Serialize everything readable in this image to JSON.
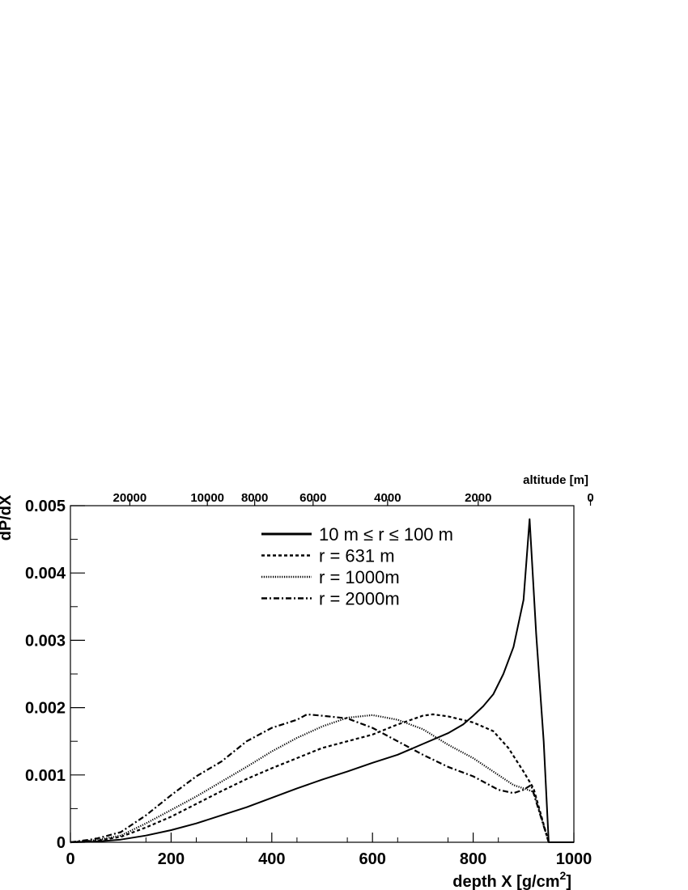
{
  "chart_data": {
    "type": "line",
    "xlabel": "depth X [g/cm",
    "xlabel_sup": "2",
    "xlabel_end": "]",
    "ylabel": "dP/dX",
    "top_axis_label": "altitude [m]",
    "xlim": [
      0,
      1000
    ],
    "ylim": [
      0,
      0.005
    ],
    "x_ticks": [
      0,
      200,
      400,
      600,
      800,
      1000
    ],
    "x_tick_labels": [
      "0",
      "200",
      "400",
      "600",
      "800",
      "1000"
    ],
    "y_ticks": [
      0,
      0.001,
      0.002,
      0.003,
      0.004,
      0.005
    ],
    "y_tick_labels": [
      "0",
      "0.001",
      "0.002",
      "0.003",
      "0.004",
      "0.005"
    ],
    "top_ticks": [
      {
        "depth": 118,
        "label": "20000"
      },
      {
        "depth": 272,
        "label": "10000"
      },
      {
        "depth": 366,
        "label": "8000"
      },
      {
        "depth": 482,
        "label": "6000"
      },
      {
        "depth": 630,
        "label": "4000"
      },
      {
        "depth": 810,
        "label": "2000"
      },
      {
        "depth": 1033,
        "label": "0"
      }
    ],
    "grid": false,
    "legend_position": "top-center",
    "series": [
      {
        "name": "10 m ≤ r ≤ 100 m",
        "dash": "solid",
        "x": [
          0,
          50,
          100,
          150,
          200,
          250,
          300,
          350,
          400,
          450,
          500,
          550,
          600,
          650,
          700,
          750,
          780,
          800,
          820,
          840,
          860,
          880,
          900,
          912,
          925,
          940,
          950,
          1000
        ],
        "y": [
          0,
          1e-05,
          4e-05,
          0.0001,
          0.00018,
          0.00028,
          0.0004,
          0.00052,
          0.00066,
          0.0008,
          0.00093,
          0.00105,
          0.00118,
          0.0013,
          0.00146,
          0.00162,
          0.00175,
          0.00188,
          0.00202,
          0.0022,
          0.0025,
          0.0029,
          0.0036,
          0.0048,
          0.0031,
          0.0015,
          0,
          0
        ]
      },
      {
        "name": "r = 631 m",
        "dash": "dashed",
        "x": [
          0,
          50,
          100,
          150,
          200,
          250,
          300,
          350,
          400,
          450,
          500,
          550,
          600,
          650,
          700,
          720,
          750,
          800,
          840,
          870,
          900,
          920,
          950
        ],
        "y": [
          0,
          2e-05,
          8e-05,
          0.00022,
          0.00038,
          0.00057,
          0.00076,
          0.00094,
          0.0011,
          0.00125,
          0.0014,
          0.0015,
          0.0016,
          0.00175,
          0.00188,
          0.0019,
          0.00187,
          0.00178,
          0.00165,
          0.0014,
          0.00105,
          0.0008,
          0
        ]
      },
      {
        "name": "r = 1000m",
        "dash": "dotted",
        "x": [
          0,
          50,
          100,
          150,
          200,
          250,
          300,
          350,
          400,
          450,
          500,
          550,
          600,
          650,
          700,
          750,
          800,
          850,
          880,
          900,
          920,
          950
        ],
        "y": [
          0,
          3e-05,
          0.0001,
          0.00028,
          0.00048,
          0.00068,
          0.0009,
          0.00112,
          0.00135,
          0.00155,
          0.00172,
          0.00185,
          0.00189,
          0.00182,
          0.00168,
          0.00145,
          0.00125,
          0.001,
          0.00085,
          0.0008,
          0.00075,
          0
        ]
      },
      {
        "name": "r = 2000m",
        "dash": "dashdot",
        "x": [
          0,
          50,
          100,
          150,
          200,
          250,
          300,
          350,
          400,
          450,
          470,
          500,
          550,
          600,
          650,
          700,
          750,
          800,
          850,
          880,
          900,
          915,
          950
        ],
        "y": [
          0,
          5e-05,
          0.00015,
          0.0004,
          0.0007,
          0.00098,
          0.0012,
          0.0015,
          0.0017,
          0.00182,
          0.0019,
          0.00188,
          0.00184,
          0.0017,
          0.0015,
          0.0013,
          0.00112,
          0.00098,
          0.00078,
          0.00073,
          0.00078,
          0.00085,
          0
        ]
      }
    ]
  }
}
